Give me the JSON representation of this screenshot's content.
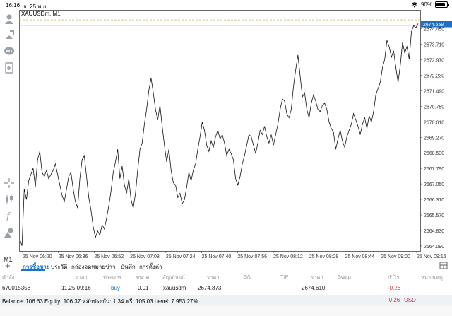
{
  "status": {
    "time": "16:16",
    "date": "จ. 25 พ.ย.",
    "battery": "90%"
  },
  "chart": {
    "symbol": "XAUUSDm, M1",
    "current_price": "2674.658",
    "price_labels": [
      "2674.450",
      "2673.710",
      "2672.970",
      "2672.230",
      "2671.490",
      "2670.750",
      "2670.010",
      "2669.270",
      "2668.530",
      "2667.790",
      "2667.050",
      "2666.310",
      "2665.570",
      "2664.830",
      "2664.090"
    ],
    "time_labels": [
      "25 Nov 06:20",
      "25 Nov 06:36",
      "25 Nov 06:52",
      "25 Nov 07:08",
      "25 Nov 07:24",
      "25 Nov 07:40",
      "25 Nov 07:56",
      "25 Nov 08:12",
      "25 Nov 08:28",
      "25 Nov 08:44",
      "25 Nov 09:00",
      "25 Nov 09:16"
    ]
  },
  "chart_data": {
    "type": "line",
    "ylim": [
      2663.85,
      2675.35
    ],
    "values": [
      2664.4,
      2664.1,
      2666.8,
      2666.3,
      2667.2,
      2667.5,
      2667.8,
      2666.9,
      2668.2,
      2668.6,
      2667.6,
      2667.4,
      2667.7,
      2667.3,
      2667.5,
      2667.7,
      2668.0,
      2667.5,
      2667.0,
      2666.5,
      2666.2,
      2666.8,
      2667.4,
      2667.6,
      2666.8,
      2666.2,
      2665.9,
      2667.3,
      2668.2,
      2668.4,
      2667.4,
      2666.4,
      2665.8,
      2665.0,
      2664.5,
      2664.8,
      2664.6,
      2665.1,
      2664.9,
      2665.4,
      2666.0,
      2666.7,
      2667.6,
      2668.1,
      2668.7,
      2667.3,
      2667.9,
      2667.0,
      2666.6,
      2667.3,
      2666.3,
      2665.9,
      2666.6,
      2667.7,
      2668.7,
      2669.0,
      2669.9,
      2670.6,
      2671.5,
      2672.1,
      2671.4,
      2670.6,
      2670.1,
      2670.8,
      2669.8,
      2668.9,
      2668.1,
      2668.7,
      2667.7,
      2667.1,
      2667.0,
      2666.4,
      2666.6,
      2666.1,
      2666.3,
      2666.9,
      2667.6,
      2667.2,
      2667.7,
      2668.0,
      2668.7,
      2669.3,
      2670.0,
      2669.6,
      2668.9,
      2668.6,
      2669.1,
      2668.8,
      2669.3,
      2669.6,
      2669.2,
      2669.4,
      2669.0,
      2668.4,
      2668.7,
      2668.5,
      2668.2,
      2667.3,
      2667.0,
      2667.4,
      2668.0,
      2668.4,
      2668.9,
      2669.4,
      2669.3,
      2668.9,
      2668.5,
      2669.0,
      2669.6,
      2669.4,
      2669.8,
      2669.3,
      2669.0,
      2669.4,
      2668.9,
      2669.4,
      2669.9,
      2670.6,
      2671.1,
      2671.0,
      2670.4,
      2670.2,
      2670.6,
      2671.7,
      2672.5,
      2673.2,
      2672.2,
      2671.2,
      2671.4,
      2670.6,
      2670.2,
      2670.9,
      2671.3,
      2671.0,
      2670.6,
      2670.5,
      2670.8,
      2670.9,
      2670.6,
      2670.0,
      2669.7,
      2669.5,
      2668.7,
      2669.2,
      2669.6,
      2669.1,
      2668.8,
      2669.3,
      2669.6,
      2669.9,
      2670.4,
      2670.1,
      2669.8,
      2669.4,
      2669.9,
      2670.2,
      2669.7,
      2670.3,
      2670.0,
      2670.5,
      2671.3,
      2671.6,
      2671.9,
      2672.6,
      2673.0,
      2673.9,
      2673.6,
      2673.1,
      2673.4,
      2672.6,
      2671.9,
      2672.7,
      2673.8,
      2673.3,
      2673.6,
      2673.0,
      2674.3,
      2674.6,
      2674.5,
      2674.7
    ],
    "line_levels": [
      2674.873,
      2674.61
    ]
  },
  "toolbar": {
    "icons": [
      "person-icon",
      "pin-arrow-icon",
      "chat-icon",
      "add-document-icon",
      "crosshair-icon",
      "candles-icon",
      "function-icon",
      "objects-icon"
    ],
    "timeframe": "M1"
  },
  "tabs": {
    "items": [
      "การซื้อขาย",
      "ประวัติ",
      "กล่องจดหมาย",
      "ข่าว",
      "บันทึก",
      "การตั้งค่า"
    ],
    "active": 0
  },
  "table": {
    "headers": [
      "คำสั่ง",
      "เวลา",
      "ประเภท",
      "ขนาด",
      "สัญลักษณ์",
      "ราคา",
      "S/L",
      "T/P",
      "ราคา",
      "Swap",
      "กำไร",
      "หมายเหตุ"
    ],
    "row": {
      "order": "670015358",
      "time": "11.25 09:16",
      "type": "buy",
      "size": "0.01",
      "symbol": "xauusdm",
      "price": "2674.873",
      "current_price": "2674.610",
      "profit": "-0.26"
    }
  },
  "balance": {
    "text": "Balance: 106.63 Equity: 106.37 หลักประกัน: 1.34 ฟรี: 105.03 Level: 7 953.27%",
    "profit": "-0.26",
    "currency": "USD"
  }
}
